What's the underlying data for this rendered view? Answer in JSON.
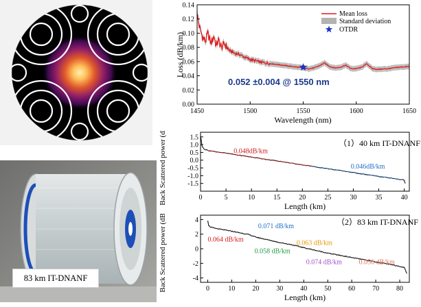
{
  "fiber_cross_section": {
    "structure": "nested-ring-cladding",
    "core_glow_color": "#ffe08a",
    "background": "#000000",
    "ring_color": "#ffffff"
  },
  "spool_photo": {
    "label": "83 km IT-DNANF",
    "coating_color": "#1d4fb8"
  },
  "chart_data": [
    {
      "type": "line",
      "id": "loss-spectrum",
      "xlabel": "Wavelength (nm)",
      "ylabel": "Loss (dB/km)",
      "xlim": [
        1450,
        1650
      ],
      "ylim": [
        0.0,
        0.14
      ],
      "xticks": [
        "1450",
        "1500",
        "1550",
        "1600",
        "1650"
      ],
      "yticks": [
        "0.00",
        "0.02",
        "0.04",
        "0.06",
        "0.08",
        "0.10",
        "0.12",
        "0.14"
      ],
      "series": [
        {
          "name": "Mean loss",
          "color": "#e01b1b",
          "x": [
            1450,
            1452,
            1455,
            1458,
            1460,
            1463,
            1466,
            1468,
            1470,
            1473,
            1476,
            1480,
            1485,
            1490,
            1495,
            1500,
            1505,
            1510,
            1515,
            1520,
            1525,
            1530,
            1535,
            1540,
            1545,
            1550,
            1555,
            1560,
            1565,
            1570,
            1575,
            1580,
            1585,
            1590,
            1595,
            1600,
            1605,
            1610,
            1615,
            1620,
            1630,
            1640,
            1650
          ],
          "y": [
            0.128,
            0.11,
            0.095,
            0.088,
            0.1,
            0.086,
            0.096,
            0.082,
            0.09,
            0.08,
            0.085,
            0.076,
            0.072,
            0.07,
            0.066,
            0.063,
            0.061,
            0.059,
            0.058,
            0.057,
            0.056,
            0.055,
            0.054,
            0.053,
            0.052,
            0.051,
            0.05,
            0.051,
            0.054,
            0.058,
            0.053,
            0.051,
            0.052,
            0.055,
            0.05,
            0.05,
            0.052,
            0.057,
            0.05,
            0.049,
            0.05,
            0.052,
            0.053
          ]
        },
        {
          "name": "Standard deviation",
          "color": "#b3b3b3",
          "band_halfwidth": 0.004
        },
        {
          "name": "OTDR",
          "color": "#1a33c8",
          "marker": "star",
          "x": [
            1550
          ],
          "y": [
            0.052
          ]
        }
      ],
      "annotation": "0.052 ±0.004 @ 1550 nm",
      "legend_position": "top-right"
    },
    {
      "type": "line",
      "id": "otdr-40km",
      "title": "（1）40 km IT-DNANF",
      "xlabel": "Length (km)",
      "ylabel": "Back Scattered power (dB)",
      "xlim": [
        0,
        41
      ],
      "ylim": [
        -2.0,
        1.8
      ],
      "xticks": [
        "0",
        "5",
        "10",
        "15",
        "20",
        "25",
        "30",
        "35",
        "40"
      ],
      "yticks": [
        "-1.5",
        "-1.0",
        "-0.5",
        "0.0",
        "0.5",
        "1.0",
        "1.5"
      ],
      "trace_x": [
        0,
        0.3,
        0.8,
        1.5,
        3,
        5,
        10,
        15,
        20,
        22,
        25,
        30,
        35,
        40,
        40.2
      ],
      "trace_y": [
        1.6,
        0.9,
        0.7,
        0.62,
        0.55,
        0.45,
        0.2,
        -0.05,
        -0.3,
        -0.4,
        -0.55,
        -0.8,
        -1.05,
        -1.28,
        -1.5
      ],
      "annotations": [
        {
          "text": "0.048dB/km",
          "x": 6.5,
          "y": 0.45,
          "color": "#d11a1a"
        },
        {
          "text": "0.046dB/km",
          "x": 29.5,
          "y": -0.55,
          "color": "#1f6fc8"
        }
      ]
    },
    {
      "type": "line",
      "id": "otdr-83km",
      "title": "（2）83 km IT-DNANF",
      "xlabel": "Length (km)",
      "ylabel": "Back Scattered power (dB)",
      "xlim": [
        -3,
        84
      ],
      "ylim": [
        -4.6,
        4.6
      ],
      "xticks": [
        "0",
        "10",
        "20",
        "30",
        "40",
        "50",
        "60",
        "70",
        "80"
      ],
      "yticks": [
        "-4",
        "-2",
        "0",
        "2",
        "4"
      ],
      "trace_x": [
        0,
        0.4,
        1,
        3,
        10,
        17,
        20,
        30,
        35,
        40,
        50,
        60,
        70,
        80,
        82,
        83
      ],
      "trace_y": [
        3.9,
        3.2,
        3.0,
        2.8,
        2.4,
        1.95,
        1.6,
        0.85,
        0.55,
        0.15,
        -0.6,
        -1.2,
        -1.8,
        -2.4,
        -2.6,
        -3.4
      ],
      "annotations": [
        {
          "text": "0.064 dB/km",
          "x": 0,
          "y": 1.0,
          "color": "#d11a1a"
        },
        {
          "text": "0.071 dB/km",
          "x": 21,
          "y": 2.8,
          "color": "#1f6fc8"
        },
        {
          "text": "0.058 dB/km",
          "x": 19.5,
          "y": -0.6,
          "color": "#1c9a4a"
        },
        {
          "text": "0.063 dB/km",
          "x": 37,
          "y": 0.5,
          "color": "#e59a00"
        },
        {
          "text": "0.074 dB/km",
          "x": 41,
          "y": -2.1,
          "color": "#a44fcf"
        },
        {
          "text": "0.056 dB/km",
          "x": 63,
          "y": -2.1,
          "color": "#e0705a"
        }
      ]
    }
  ]
}
